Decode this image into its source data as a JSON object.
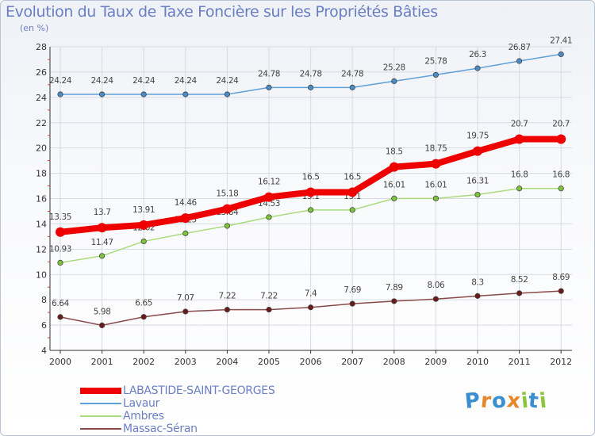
{
  "title": "Evolution du Taux de Taxe Foncière sur les Propriétés Bâties",
  "subtitle": "(en %)",
  "logo": {
    "letters": [
      "P",
      "r",
      "o",
      "x",
      "i",
      "t",
      "i"
    ],
    "colors": [
      "#3a8fd0",
      "#e8862a",
      "#3a8fd0",
      "#e8862a",
      "#8cc63f",
      "#3a8fd0",
      "#8cc63f"
    ]
  },
  "chart_data": {
    "type": "line",
    "title": "Evolution du Taux de Taxe Foncière sur les Propriétés Bâties",
    "ylabel": "(en %)",
    "xlabel": "",
    "ylim": [
      4,
      28
    ],
    "yticks": [
      4,
      6,
      8,
      10,
      12,
      14,
      16,
      18,
      20,
      22,
      24,
      26,
      28
    ],
    "grid": true,
    "legend_position": "bottom-left",
    "x": [
      "2000",
      "2001",
      "2002",
      "2003",
      "2004",
      "2005",
      "2006",
      "2007",
      "2008",
      "2009",
      "2010",
      "2011",
      "2012"
    ],
    "series": [
      {
        "name": "Lavaur",
        "color": "#5fa0d8",
        "dot": "#4a8cc8",
        "width": 1.5,
        "labelOffset": -14,
        "values": [
          24.24,
          24.24,
          24.24,
          24.24,
          24.24,
          24.78,
          24.78,
          24.78,
          25.28,
          25.78,
          26.3,
          26.87,
          27.41
        ]
      },
      {
        "name": "Ambres",
        "color": "#a9dc7e",
        "dot": "#7cc43a",
        "width": 1.5,
        "labelOffset": -14,
        "values": [
          10.93,
          11.47,
          12.62,
          13.25,
          13.84,
          14.53,
          15.1,
          15.1,
          16.01,
          16.01,
          16.31,
          16.8,
          16.8
        ]
      },
      {
        "name": "Massac-Séran",
        "color": "#8a4a4a",
        "dot": "#6b1a1a",
        "width": 1.5,
        "labelOffset": -14,
        "values": [
          6.64,
          5.98,
          6.65,
          7.07,
          7.22,
          7.22,
          7.4,
          7.69,
          7.89,
          8.06,
          8.3,
          8.52,
          8.69
        ]
      },
      {
        "name": "LABASTIDE-SAINT-GEORGES",
        "color": "#ee0000",
        "dot": "#ee0000",
        "width": 8,
        "labelOffset": -16,
        "values": [
          13.35,
          13.7,
          13.91,
          14.46,
          15.18,
          16.12,
          16.5,
          16.5,
          18.5,
          18.75,
          19.75,
          20.7,
          20.7
        ]
      }
    ],
    "legend": [
      {
        "name": "LABASTIDE-SAINT-GEORGES",
        "color": "#ee0000",
        "thick": true
      },
      {
        "name": "Lavaur",
        "color": "#5fa0d8",
        "thick": false
      },
      {
        "name": "Ambres",
        "color": "#a9dc7e",
        "thick": false
      },
      {
        "name": "Massac-Séran",
        "color": "#8a4a4a",
        "thick": false
      }
    ]
  }
}
